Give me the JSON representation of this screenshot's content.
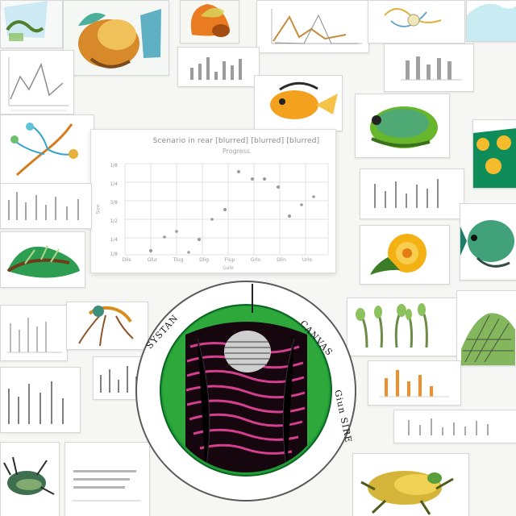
{
  "scene": {
    "center_chart": {
      "title": "Scenario in rear [blurred] [blurred] [blurred]",
      "subtitle": "Progress",
      "x_ticks": [
        "Dlis",
        "Glur",
        "Tlug",
        "Dlig",
        "Flup",
        "Grlo",
        "Dlin",
        "Urlo"
      ],
      "y_ticks": [
        "1/8",
        "1/4",
        "3/8",
        "1/2",
        "1/4",
        "1/8"
      ],
      "xlabel": "Gale",
      "ylabel": "Size"
    },
    "circle_labels": {
      "left": "SYSTAN",
      "right": "CANVAS",
      "bottom": "Giun SIRE"
    },
    "icon": "collage-scientific-illustration"
  }
}
